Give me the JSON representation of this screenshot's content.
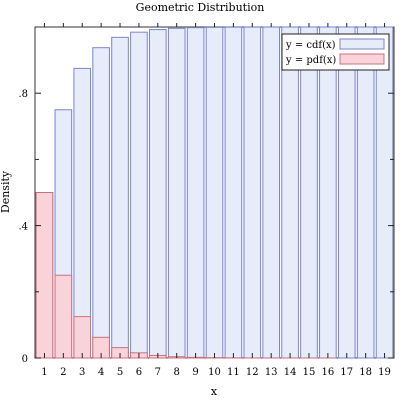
{
  "chart_data": {
    "type": "bar",
    "title": "Geometric Distribution",
    "xlabel": "x",
    "ylabel": "Density",
    "x": [
      1,
      2,
      3,
      4,
      5,
      6,
      7,
      8,
      9,
      10,
      11,
      12,
      13,
      14,
      15,
      16,
      17,
      18,
      19
    ],
    "xlim": [
      0.5,
      19.5
    ],
    "ylim": [
      0,
      1
    ],
    "yticks": [
      0,
      0.4,
      0.8
    ],
    "ytick_labels": [
      "0",
      ".4",
      ".8"
    ],
    "grid": false,
    "legend": {
      "placement": "top-right",
      "entries": [
        {
          "label": "y = cdf(x)",
          "series": "cdf"
        },
        {
          "label": "y = pdf(x)",
          "series": "pdf"
        }
      ]
    },
    "series": [
      {
        "id": "cdf",
        "fill": "#e6ecfa",
        "stroke": "#7b84cc",
        "values": [
          0.5,
          0.75,
          0.875,
          0.9375,
          0.96875,
          0.984375,
          0.9921875,
          0.99609375,
          0.998046875,
          0.9990234375,
          0.99951171875,
          0.999755859375,
          0.9998779296875,
          0.99993896484375,
          0.999969482421875,
          0.9999847412109375,
          0.9999923706054688,
          0.9999961853027344,
          0.9999980926513672
        ]
      },
      {
        "id": "pdf",
        "fill": "#f8d4da",
        "stroke": "#cc6f7c",
        "values": [
          0.5,
          0.25,
          0.125,
          0.0625,
          0.03125,
          0.015625,
          0.0078125,
          0.00390625,
          0.001953125,
          0.0009765625,
          0.00048828125,
          0.000244140625,
          0.0001220703125,
          6.103515625e-05,
          3.0517578125e-05,
          1.52587890625e-05,
          7.62939453125e-06,
          3.814697265625e-06,
          1.9073486328125e-06
        ]
      }
    ]
  }
}
